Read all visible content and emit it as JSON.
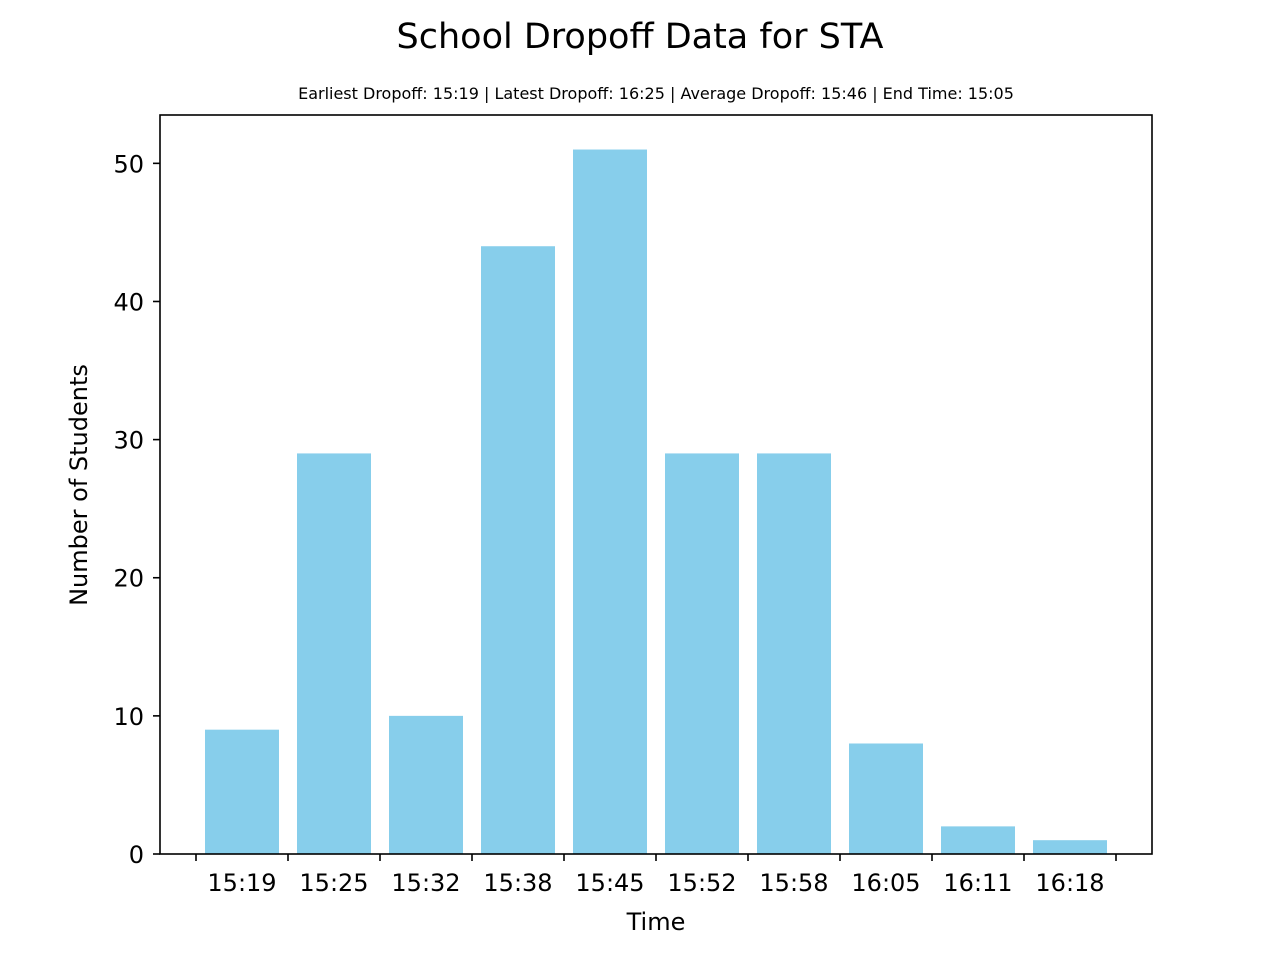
{
  "chart_data": {
    "type": "bar",
    "title": "School Dropoff Data for STA",
    "subtitle": "Earliest Dropoff: 15:19 | Latest Dropoff: 16:25 | Average Dropoff: 15:46 | End Time: 15:05",
    "xlabel": "Time",
    "ylabel": "Number of Students",
    "categories": [
      "15:19",
      "15:25",
      "15:32",
      "15:38",
      "15:45",
      "15:52",
      "15:58",
      "16:05",
      "16:11",
      "16:18"
    ],
    "values": [
      9,
      29,
      10,
      44,
      51,
      29,
      29,
      8,
      2,
      1
    ],
    "ylim": [
      0,
      53.5
    ],
    "yticks": [
      0,
      10,
      20,
      30,
      40,
      50
    ],
    "bar_color": "#87CEEB",
    "grid": false,
    "legend": false
  }
}
